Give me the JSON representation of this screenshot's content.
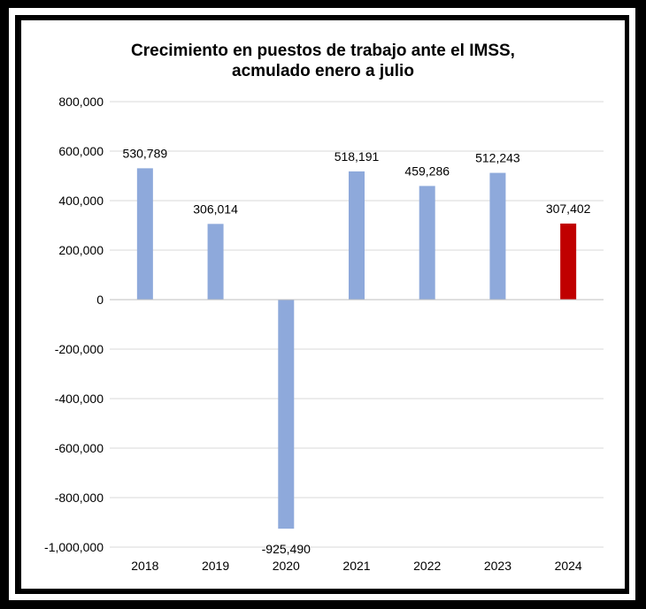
{
  "chart_data": {
    "type": "bar",
    "title": [
      "Crecimiento en puestos de trabajo ante el IMSS,",
      "acmulado enero a julio"
    ],
    "xlabel": "",
    "ylabel": "",
    "categories": [
      "2018",
      "2019",
      "2020",
      "2021",
      "2022",
      "2023",
      "2024"
    ],
    "values": [
      530789,
      306014,
      -925490,
      518191,
      459286,
      512243,
      307402
    ],
    "data_labels": [
      "530,789",
      "306,014",
      "-925,490",
      "518,191",
      "459,286",
      "512,243",
      "307,402"
    ],
    "ylim": [
      -1000000,
      800000
    ],
    "yticks": [
      800000,
      600000,
      400000,
      200000,
      0,
      -200000,
      -400000,
      -600000,
      -800000,
      -1000000
    ],
    "ytick_labels": [
      "800,000",
      "600,000",
      "400,000",
      "200,000",
      "0",
      "-200,000",
      "-400,000",
      "-600,000",
      "-800,000",
      "-1,000,000"
    ],
    "grid": true,
    "colors": {
      "default_bar": "#8EA9DB",
      "highlight_bar": "#C00000",
      "gridline": "#D9D9D9",
      "axis": "#BFBFBF",
      "text": "#000000"
    },
    "highlight_category": "2024"
  }
}
